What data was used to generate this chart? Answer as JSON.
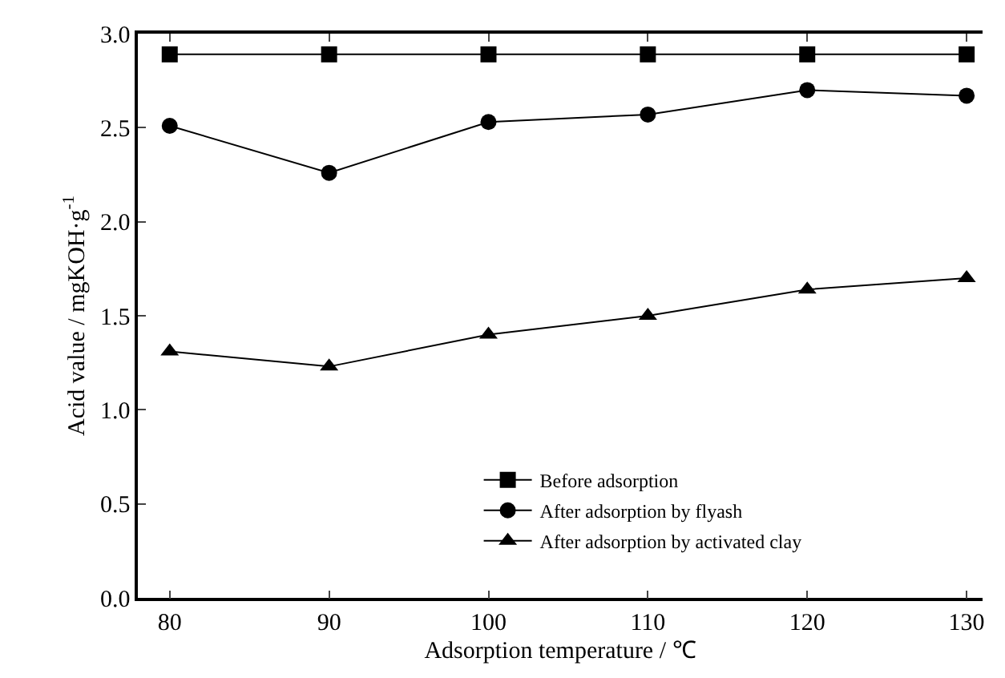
{
  "chart_data": {
    "type": "line",
    "xlabel": "Adsorption temperature / ℃",
    "ylabel": "Acid value / mgKOH·g$^{-1}$",
    "x": [
      80,
      90,
      100,
      110,
      120,
      130
    ],
    "series": [
      {
        "name": "Before adsorption",
        "color": "#000000",
        "marker": "square",
        "values": [
          2.89,
          2.89,
          2.89,
          2.89,
          2.89,
          2.89
        ]
      },
      {
        "name": "After adsorption by flyash",
        "color": "#000000",
        "marker": "circle",
        "values": [
          2.51,
          2.26,
          2.53,
          2.57,
          2.7,
          2.67
        ]
      },
      {
        "name": "After adsorption by activated clay",
        "color": "#000000",
        "marker": "triangle",
        "values": [
          1.31,
          1.23,
          1.4,
          1.5,
          1.64,
          1.7
        ]
      }
    ],
    "xlim": [
      78,
      131
    ],
    "xticks": [
      80,
      90,
      100,
      110,
      120,
      130
    ],
    "ylim": [
      0,
      3
    ],
    "yticks": [
      {
        "value": 0,
        "label": "0.0"
      },
      {
        "value": 0.5,
        "label": "0.5"
      },
      {
        "value": 1,
        "label": "1.0"
      },
      {
        "value": 1.5,
        "label": "1.5"
      },
      {
        "value": 2,
        "label": "2.0"
      },
      {
        "value": 2.5,
        "label": "2.5"
      },
      {
        "value": 3,
        "label": "3.0"
      }
    ],
    "legend": "bottom right",
    "line_style": "solid"
  }
}
